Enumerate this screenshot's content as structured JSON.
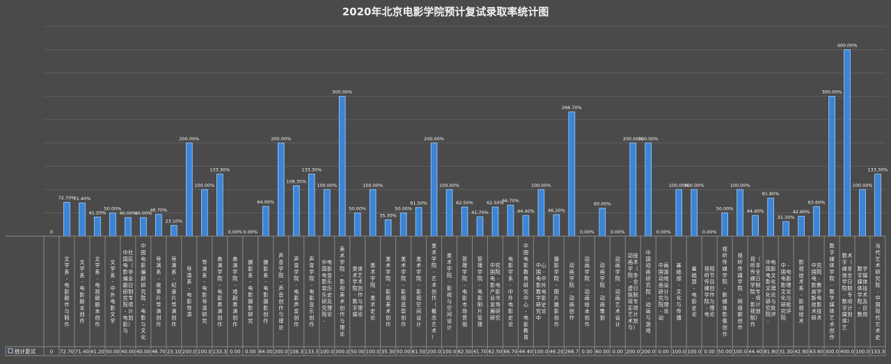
{
  "chart_data": {
    "type": "bar",
    "title": "2020年北京电影学院预计复试录取率统计图",
    "xlabel": "",
    "ylabel": "",
    "ylim": [
      0,
      450
    ],
    "grid": true,
    "legend": "data-table",
    "bar_color": "#3c84d6",
    "bar_edge_color": "#a8d2ff",
    "categories": [
      "",
      "文学系-电影剧作与制作",
      "文学系-电影剧本创作",
      "文学系-电视剧剧本创作",
      "文学系-中外电影文学",
      "中国电影编剧研究院-电影与社区（非全日制专项计划）",
      "中国电影编剧研究院-电影与文化",
      "导演系-故事片导演创作",
      "导演系-纪录片导演创作",
      "导演系-电影导演",
      "导演系-电影导演研究",
      "表演学院-电影表演创作",
      "表演学院-戏剧表演创作",
      "摄影系-电影摄影研究",
      "摄影系-电影摄影创作",
      "声音学院-声音创作与理论",
      "声音学院-电影声音创作",
      "声音学院-电影音乐创作",
      "中国电影音乐研究院-电影音乐历史及理论",
      "美术学院-影视美术创作与理论",
      "美术学院-数字媒体艺术创作与理论",
      "美术学院-美术史论",
      "美术学院-影视美术创作",
      "美术学院-影视造型创作",
      "美术学院-影视空间设计",
      "美术学院-艺术创作（概念艺术）",
      "美术学院-影视与空间设计",
      "管理学院-电影市场营销",
      "管理学院-电影制片管理",
      "中国电影产业发展研究院-电影市场研究",
      "电影学系-中外电影史论",
      "中国电影教育研究中心-电影教育",
      "中国电影数字研究中心-中外电影史论",
      "摄影学院-图片摄影创作",
      "动画学院-动画创作",
      "动画学院-动画绘本创作",
      "动画学院-动画策划",
      "动画学院-动画艺术设计",
      "动画学院-虚拟现实艺术与技术（非全日制专项计划）",
      "中国动画研究院-动画与游戏",
      "中国动画研究院-动画游戏设计与理论",
      "基础部-文化与传播",
      "基础部-电影史论",
      "视听传媒学院-电视节目创作与理论",
      "视听传媒学院-新媒体影像创作",
      "视听传媒学院-网络剧创作",
      "视听传媒学院-影视制作（非全日制专项计划）",
      "中国电影文化研究院-电影文化理论与批评",
      "中国电影文化研究院-电影理论与批评",
      "影视技术系-影视技术",
      "中国电影高新技术研究院-数字电影技术",
      "数字媒体学院-数字媒体艺术创作",
      "数字媒体学院-数字媒体艺术（非全日制专项计划）",
      "数字媒体学院-数字媒体技术及应用",
      "当代艺术研究院-中国现代艺术史"
    ],
    "series": [
      {
        "name": "统计复试",
        "values": [
          0,
          72.7,
          71.4,
          41.2,
          50.0,
          40.0,
          40.0,
          46.7,
          23.1,
          200.0,
          100.0,
          133.3,
          0.0,
          0.0,
          64.0,
          200.0,
          108.3,
          133.3,
          100.0,
          300.0,
          50.0,
          100.0,
          35.3,
          50.0,
          61.5,
          200.0,
          100.0,
          62.5,
          41.7,
          62.5,
          66.7,
          44.4,
          100.0,
          46.2,
          266.7,
          0.0,
          60.0,
          0.0,
          200.0,
          200.0,
          0.0,
          100.0,
          100.0,
          0.0,
          50.0,
          100.0,
          44.4,
          81.8,
          31.3,
          42.9,
          63.6,
          300.0,
          400.0,
          100.0,
          133.3
        ],
        "data_labels": [
          "0",
          "72.70%",
          "71.40%",
          "41.20%",
          "50.00%",
          "40.00%",
          "40.00%",
          "46.70%",
          "23.10%",
          "200.00%",
          "100.00%",
          "133.30%",
          "0.00%",
          "0.00%",
          "64.00%",
          "200.00%",
          "108.30%",
          "133.30%",
          "100.00%",
          "300.00%",
          "50.00%",
          "100.00%",
          "35.30%",
          "50.00%",
          "61.50%",
          "200.00%",
          "100.00%",
          "62.50%",
          "41.70%",
          "62.50%",
          "66.70%",
          "44.40%",
          "100.00%",
          "46.20%",
          "266.70%",
          "0.00%",
          "60.00%",
          "0.00%",
          "200.00%",
          "200.00%",
          "0.00%",
          "100.00%",
          "100.00%",
          "0.00%",
          "50.00%",
          "100.00%",
          "44.40%",
          "81.80%",
          "31.30%",
          "42.90%",
          "63.60%",
          "300.00%",
          "400.00%",
          "100.00%",
          "133.30%"
        ],
        "table_values": [
          "0",
          "72.70",
          "71.40",
          "41.20",
          "50.00",
          "40.00",
          "40.00",
          "46.70",
          "23.10",
          "200.0",
          "100.0",
          "133.3",
          "0.00",
          "0.00",
          "64.00",
          "200.0",
          "108.3",
          "133.3",
          "100.0",
          "300.0",
          "50.00",
          "100.0",
          "35.30",
          "50.00",
          "61.50",
          "200.0",
          "100.0",
          "62.50",
          "41.70",
          "62.50",
          "66.70",
          "44.40",
          "100.0",
          "46.20",
          "266.7",
          "0.00",
          "60.00",
          "0.00",
          "200.0",
          "200.0",
          "0.00",
          "100.0",
          "100.0",
          "0.00",
          "50.00",
          "100.0",
          "44.40",
          "81.80",
          "31.30",
          "42.90",
          "63.60",
          "300.0",
          "400.0",
          "100.0",
          "133.3"
        ]
      }
    ]
  }
}
